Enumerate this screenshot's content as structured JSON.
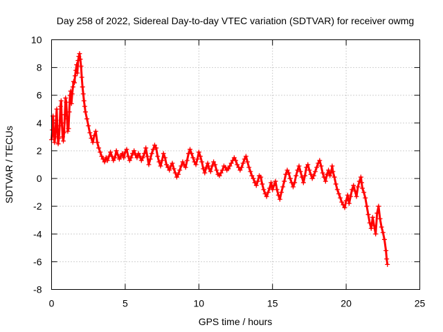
{
  "chart_data": {
    "type": "scatter",
    "title": "Day 258 of 2022, Sidereal Day-to-day VTEC variation (SDTVAR) for receiver owmg",
    "xlabel": "GPS time / hours",
    "ylabel": "SDTVAR / TECUs",
    "xlim": [
      0,
      25
    ],
    "ylim": [
      -8,
      10
    ],
    "xticks": [
      0,
      5,
      10,
      15,
      20,
      25
    ],
    "yticks": [
      -8,
      -6,
      -4,
      -2,
      0,
      2,
      4,
      6,
      8,
      10
    ],
    "grid": true,
    "marker": "+",
    "color": "#ff0000",
    "series": [
      {
        "name": "SDTVAR",
        "points": [
          [
            0.0,
            2.8
          ],
          [
            0.05,
            3.5
          ],
          [
            0.1,
            4.5
          ],
          [
            0.15,
            3.2
          ],
          [
            0.2,
            2.6
          ],
          [
            0.25,
            3.0
          ],
          [
            0.3,
            4.2
          ],
          [
            0.35,
            5.0
          ],
          [
            0.4,
            3.4
          ],
          [
            0.45,
            2.5
          ],
          [
            0.5,
            2.9
          ],
          [
            0.55,
            3.8
          ],
          [
            0.6,
            5.2
          ],
          [
            0.65,
            5.6
          ],
          [
            0.7,
            4.0
          ],
          [
            0.75,
            3.0
          ],
          [
            0.8,
            2.7
          ],
          [
            0.85,
            3.3
          ],
          [
            0.9,
            4.6
          ],
          [
            0.95,
            5.8
          ],
          [
            1.0,
            5.5
          ],
          [
            1.05,
            4.3
          ],
          [
            1.1,
            3.4
          ],
          [
            1.15,
            3.6
          ],
          [
            1.2,
            4.8
          ],
          [
            1.25,
            6.0
          ],
          [
            1.3,
            6.3
          ],
          [
            1.35,
            5.4
          ],
          [
            1.4,
            6.1
          ],
          [
            1.45,
            6.6
          ],
          [
            1.5,
            7.0
          ],
          [
            1.55,
            6.9
          ],
          [
            1.6,
            7.4
          ],
          [
            1.65,
            7.8
          ],
          [
            1.7,
            8.2
          ],
          [
            1.75,
            7.6
          ],
          [
            1.8,
            8.5
          ],
          [
            1.85,
            8.8
          ],
          [
            1.9,
            9.0
          ],
          [
            1.95,
            8.6
          ],
          [
            2.0,
            8.1
          ],
          [
            2.05,
            7.3
          ],
          [
            2.1,
            6.6
          ],
          [
            2.15,
            6.1
          ],
          [
            2.2,
            5.6
          ],
          [
            2.25,
            5.2
          ],
          [
            2.3,
            4.8
          ],
          [
            2.4,
            4.3
          ],
          [
            2.5,
            3.8
          ],
          [
            2.6,
            3.3
          ],
          [
            2.7,
            2.9
          ],
          [
            2.8,
            2.6
          ],
          [
            2.9,
            3.1
          ],
          [
            3.0,
            3.4
          ],
          [
            3.1,
            2.6
          ],
          [
            3.2,
            2.2
          ],
          [
            3.3,
            1.9
          ],
          [
            3.4,
            1.6
          ],
          [
            3.5,
            1.4
          ],
          [
            3.6,
            1.2
          ],
          [
            3.7,
            1.5
          ],
          [
            3.8,
            1.3
          ],
          [
            3.9,
            1.6
          ],
          [
            4.0,
            1.9
          ],
          [
            4.1,
            1.6
          ],
          [
            4.2,
            1.3
          ],
          [
            4.3,
            1.5
          ],
          [
            4.4,
            2.0
          ],
          [
            4.5,
            1.7
          ],
          [
            4.6,
            1.4
          ],
          [
            4.7,
            1.6
          ],
          [
            4.8,
            1.8
          ],
          [
            4.9,
            1.5
          ],
          [
            5.0,
            1.9
          ],
          [
            5.1,
            2.1
          ],
          [
            5.2,
            1.6
          ],
          [
            5.3,
            1.3
          ],
          [
            5.4,
            1.5
          ],
          [
            5.5,
            1.8
          ],
          [
            5.6,
            2.0
          ],
          [
            5.7,
            1.7
          ],
          [
            5.8,
            1.5
          ],
          [
            5.9,
            1.8
          ],
          [
            6.0,
            1.6
          ],
          [
            6.1,
            1.3
          ],
          [
            6.2,
            1.5
          ],
          [
            6.3,
            1.8
          ],
          [
            6.4,
            2.2
          ],
          [
            6.5,
            1.6
          ],
          [
            6.6,
            1.0
          ],
          [
            6.7,
            1.4
          ],
          [
            6.8,
            1.8
          ],
          [
            6.9,
            2.1
          ],
          [
            7.0,
            2.4
          ],
          [
            7.1,
            2.2
          ],
          [
            7.2,
            1.6
          ],
          [
            7.3,
            1.2
          ],
          [
            7.4,
            0.9
          ],
          [
            7.5,
            1.3
          ],
          [
            7.6,
            1.8
          ],
          [
            7.7,
            1.5
          ],
          [
            7.8,
            1.0
          ],
          [
            7.9,
            0.8
          ],
          [
            8.0,
            0.6
          ],
          [
            8.1,
            0.9
          ],
          [
            8.2,
            1.1
          ],
          [
            8.3,
            0.7
          ],
          [
            8.4,
            0.4
          ],
          [
            8.5,
            0.1
          ],
          [
            8.6,
            0.3
          ],
          [
            8.7,
            0.6
          ],
          [
            8.8,
            0.9
          ],
          [
            8.9,
            1.2
          ],
          [
            9.0,
            1.0
          ],
          [
            9.1,
            0.8
          ],
          [
            9.2,
            1.3
          ],
          [
            9.3,
            1.8
          ],
          [
            9.4,
            2.1
          ],
          [
            9.5,
            1.8
          ],
          [
            9.6,
            1.5
          ],
          [
            9.7,
            1.2
          ],
          [
            9.8,
            1.0
          ],
          [
            9.9,
            1.4
          ],
          [
            10.0,
            1.9
          ],
          [
            10.1,
            1.6
          ],
          [
            10.2,
            1.2
          ],
          [
            10.3,
            0.7
          ],
          [
            10.4,
            0.4
          ],
          [
            10.5,
            0.8
          ],
          [
            10.6,
            1.1
          ],
          [
            10.7,
            0.7
          ],
          [
            10.8,
            0.5
          ],
          [
            10.9,
            0.9
          ],
          [
            11.0,
            1.2
          ],
          [
            11.1,
            1.0
          ],
          [
            11.2,
            0.6
          ],
          [
            11.3,
            0.3
          ],
          [
            11.4,
            0.2
          ],
          [
            11.5,
            0.4
          ],
          [
            11.6,
            0.6
          ],
          [
            11.7,
            0.9
          ],
          [
            11.8,
            0.8
          ],
          [
            11.9,
            0.6
          ],
          [
            12.0,
            0.7
          ],
          [
            12.1,
            0.9
          ],
          [
            12.2,
            1.1
          ],
          [
            12.3,
            1.3
          ],
          [
            12.4,
            1.5
          ],
          [
            12.5,
            1.3
          ],
          [
            12.6,
            1.0
          ],
          [
            12.7,
            0.8
          ],
          [
            12.8,
            0.6
          ],
          [
            12.9,
            0.8
          ],
          [
            13.0,
            1.1
          ],
          [
            13.1,
            1.4
          ],
          [
            13.2,
            1.6
          ],
          [
            13.3,
            1.2
          ],
          [
            13.4,
            0.8
          ],
          [
            13.5,
            0.5
          ],
          [
            13.6,
            0.2
          ],
          [
            13.7,
            0.0
          ],
          [
            13.8,
            -0.3
          ],
          [
            13.9,
            -0.5
          ],
          [
            14.0,
            -0.2
          ],
          [
            14.1,
            0.2
          ],
          [
            14.2,
            0.1
          ],
          [
            14.3,
            -0.4
          ],
          [
            14.4,
            -0.8
          ],
          [
            14.5,
            -1.1
          ],
          [
            14.6,
            -1.3
          ],
          [
            14.7,
            -1.0
          ],
          [
            14.8,
            -0.7
          ],
          [
            14.9,
            -0.3
          ],
          [
            15.0,
            -0.8
          ],
          [
            15.1,
            -0.5
          ],
          [
            15.2,
            -0.2
          ],
          [
            15.3,
            -0.8
          ],
          [
            15.4,
            -1.2
          ],
          [
            15.5,
            -1.5
          ],
          [
            15.6,
            -1.0
          ],
          [
            15.7,
            -0.6
          ],
          [
            15.8,
            -0.2
          ],
          [
            15.9,
            0.3
          ],
          [
            16.0,
            0.6
          ],
          [
            16.1,
            0.4
          ],
          [
            16.2,
            0.0
          ],
          [
            16.3,
            -0.3
          ],
          [
            16.4,
            -0.6
          ],
          [
            16.5,
            -0.3
          ],
          [
            16.6,
            0.2
          ],
          [
            16.7,
            0.6
          ],
          [
            16.8,
            0.9
          ],
          [
            16.9,
            0.5
          ],
          [
            17.0,
            0.1
          ],
          [
            17.1,
            -0.3
          ],
          [
            17.2,
            0.2
          ],
          [
            17.3,
            0.8
          ],
          [
            17.4,
            1.0
          ],
          [
            17.5,
            0.6
          ],
          [
            17.6,
            0.3
          ],
          [
            17.7,
            0.0
          ],
          [
            17.8,
            0.2
          ],
          [
            17.9,
            0.5
          ],
          [
            18.0,
            0.8
          ],
          [
            18.1,
            1.1
          ],
          [
            18.2,
            1.3
          ],
          [
            18.3,
            0.9
          ],
          [
            18.4,
            0.4
          ],
          [
            18.5,
            0.1
          ],
          [
            18.6,
            -0.2
          ],
          [
            18.7,
            0.3
          ],
          [
            18.8,
            0.6
          ],
          [
            18.9,
            0.2
          ],
          [
            19.0,
            0.5
          ],
          [
            19.05,
            0.9
          ],
          [
            19.1,
            0.5
          ],
          [
            19.2,
            0.1
          ],
          [
            19.3,
            -0.4
          ],
          [
            19.4,
            -0.8
          ],
          [
            19.5,
            -1.1
          ],
          [
            19.6,
            -1.4
          ],
          [
            19.7,
            -1.7
          ],
          [
            19.8,
            -1.9
          ],
          [
            19.9,
            -2.1
          ],
          [
            20.0,
            -1.6
          ],
          [
            20.1,
            -1.2
          ],
          [
            20.2,
            -1.8
          ],
          [
            20.3,
            -1.3
          ],
          [
            20.4,
            -0.8
          ],
          [
            20.5,
            -0.5
          ],
          [
            20.6,
            -0.9
          ],
          [
            20.7,
            -1.3
          ],
          [
            20.8,
            -0.6
          ],
          [
            20.9,
            -0.2
          ],
          [
            21.0,
            0.1
          ],
          [
            21.05,
            -0.3
          ],
          [
            21.1,
            -0.7
          ],
          [
            21.2,
            -1.0
          ],
          [
            21.3,
            -1.4
          ],
          [
            21.4,
            -2.0
          ],
          [
            21.5,
            -2.6
          ],
          [
            21.6,
            -3.2
          ],
          [
            21.7,
            -3.6
          ],
          [
            21.8,
            -2.8
          ],
          [
            21.9,
            -3.4
          ],
          [
            22.0,
            -4.0
          ],
          [
            22.1,
            -2.5
          ],
          [
            22.2,
            -2.0
          ],
          [
            22.3,
            -2.9
          ],
          [
            22.4,
            -3.5
          ],
          [
            22.5,
            -3.9
          ],
          [
            22.6,
            -4.4
          ],
          [
            22.7,
            -5.2
          ],
          [
            22.75,
            -5.8
          ],
          [
            22.8,
            -6.2
          ]
        ]
      }
    ]
  }
}
